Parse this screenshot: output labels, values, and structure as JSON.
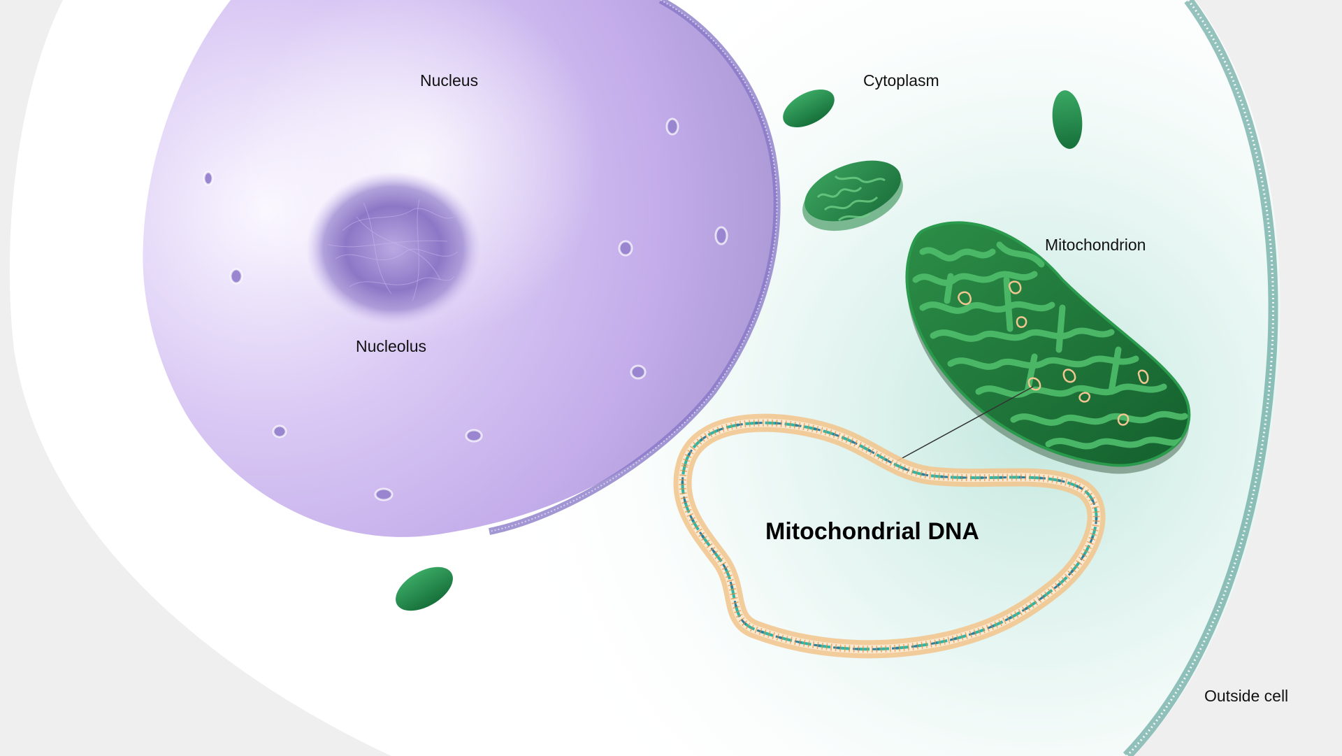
{
  "labels": {
    "nucleus": "Nucleus",
    "nucleolus": "Nucleolus",
    "cytoplasm": "Cytoplasm",
    "mitochondrion": "Mitochondrion",
    "mitochondrial_dna": "Mitochondrial DNA",
    "outside_cell": "Outside cell"
  },
  "colors": {
    "background": "#efefef",
    "cytoplasm": "#ffffff",
    "cytoplasm_tint": "#bfe6dc",
    "cell_membrane": "#3f8f86",
    "nucleus_light": "#f1ebfb",
    "nucleus_dark": "#ab9ad6",
    "nuclear_envelope": "#8474c4",
    "nucleolus": "#7a66b8",
    "mitochondrion_outer": "#1e7a3a",
    "mitochondrion_inner": "#3ea95a",
    "dna_ring": "#f2c690",
    "dna_strand": "#2fb6a7",
    "dna_strand_alt": "#2a7fa0"
  }
}
